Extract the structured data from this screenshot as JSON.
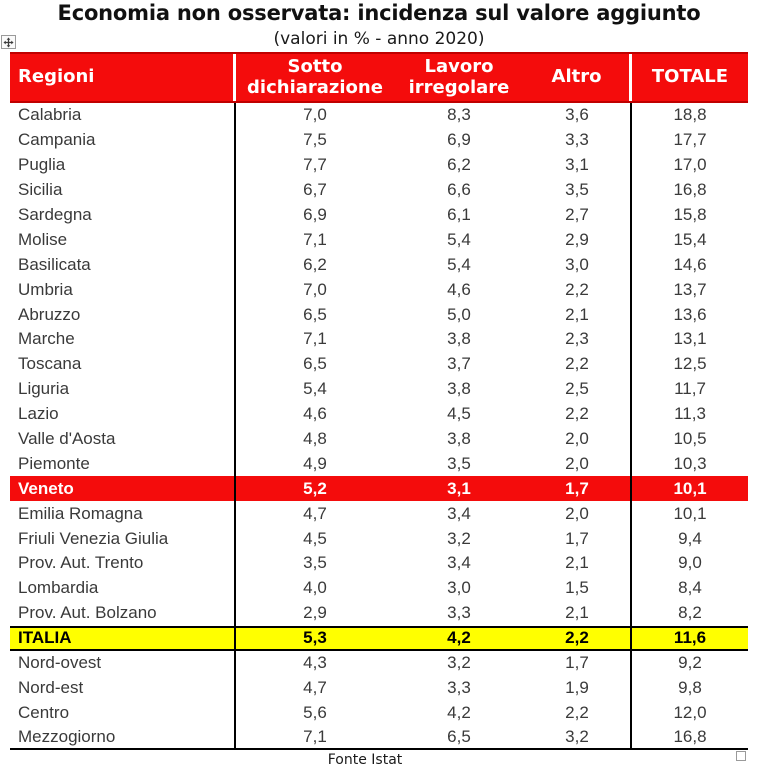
{
  "title": "Economia non osservata: incidenza sul valore aggiunto",
  "subtitle": "(valori in % - anno 2020)",
  "source": "Fonte Istat",
  "icons": {
    "top_left": "table-move-handle-icon",
    "bottom_right": "table-resize-handle-icon"
  },
  "colors": {
    "header_red": "#f40c0c",
    "header_edge_dark_red": "#c00000",
    "highlight_red_row": "#f40c0c",
    "highlight_yellow_row": "#ffff00",
    "header_text": "#ffffff",
    "body_text": "#3a3a3a",
    "border_black": "#000000"
  },
  "chart_data": {
    "type": "table",
    "title": "Economia non osservata: incidenza sul valore aggiunto",
    "subtitle": "(valori in % - anno 2020)",
    "columns": [
      "Regioni",
      "Sotto dichiarazione",
      "Lavoro irregolare",
      "Altro",
      "TOTALE"
    ],
    "rows": [
      {
        "region": "Calabria",
        "values": [
          "7,0",
          "8,3",
          "3,6",
          "18,8"
        ],
        "highlight": ""
      },
      {
        "region": "Campania",
        "values": [
          "7,5",
          "6,9",
          "3,3",
          "17,7"
        ],
        "highlight": ""
      },
      {
        "region": "Puglia",
        "values": [
          "7,7",
          "6,2",
          "3,1",
          "17,0"
        ],
        "highlight": ""
      },
      {
        "region": "Sicilia",
        "values": [
          "6,7",
          "6,6",
          "3,5",
          "16,8"
        ],
        "highlight": ""
      },
      {
        "region": "Sardegna",
        "values": [
          "6,9",
          "6,1",
          "2,7",
          "15,8"
        ],
        "highlight": ""
      },
      {
        "region": "Molise",
        "values": [
          "7,1",
          "5,4",
          "2,9",
          "15,4"
        ],
        "highlight": ""
      },
      {
        "region": "Basilicata",
        "values": [
          "6,2",
          "5,4",
          "3,0",
          "14,6"
        ],
        "highlight": ""
      },
      {
        "region": "Umbria",
        "values": [
          "7,0",
          "4,6",
          "2,2",
          "13,7"
        ],
        "highlight": ""
      },
      {
        "region": "Abruzzo",
        "values": [
          "6,5",
          "5,0",
          "2,1",
          "13,6"
        ],
        "highlight": ""
      },
      {
        "region": "Marche",
        "values": [
          "7,1",
          "3,8",
          "2,3",
          "13,1"
        ],
        "highlight": ""
      },
      {
        "region": "Toscana",
        "values": [
          "6,5",
          "3,7",
          "2,2",
          "12,5"
        ],
        "highlight": ""
      },
      {
        "region": "Liguria",
        "values": [
          "5,4",
          "3,8",
          "2,5",
          "11,7"
        ],
        "highlight": ""
      },
      {
        "region": "Lazio",
        "values": [
          "4,6",
          "4,5",
          "2,2",
          "11,3"
        ],
        "highlight": ""
      },
      {
        "region": "Valle d'Aosta",
        "values": [
          "4,8",
          "3,8",
          "2,0",
          "10,5"
        ],
        "highlight": ""
      },
      {
        "region": "Piemonte",
        "values": [
          "4,9",
          "3,5",
          "2,0",
          "10,3"
        ],
        "highlight": ""
      },
      {
        "region": "Veneto",
        "values": [
          "5,2",
          "3,1",
          "1,7",
          "10,1"
        ],
        "highlight": "red"
      },
      {
        "region": "Emilia Romagna",
        "values": [
          "4,7",
          "3,4",
          "2,0",
          "10,1"
        ],
        "highlight": ""
      },
      {
        "region": "Friuli Venezia Giulia",
        "values": [
          "4,5",
          "3,2",
          "1,7",
          "9,4"
        ],
        "highlight": ""
      },
      {
        "region": "Prov. Aut. Trento",
        "values": [
          "3,5",
          "3,4",
          "2,1",
          "9,0"
        ],
        "highlight": ""
      },
      {
        "region": "Lombardia",
        "values": [
          "4,0",
          "3,0",
          "1,5",
          "8,4"
        ],
        "highlight": ""
      },
      {
        "region": "Prov. Aut. Bolzano",
        "values": [
          "2,9",
          "3,3",
          "2,1",
          "8,2"
        ],
        "highlight": ""
      },
      {
        "region": "ITALIA",
        "values": [
          "5,3",
          "4,2",
          "2,2",
          "11,6"
        ],
        "highlight": "yellow"
      },
      {
        "region": "Nord-ovest",
        "values": [
          "4,3",
          "3,2",
          "1,7",
          "9,2"
        ],
        "highlight": ""
      },
      {
        "region": "Nord-est",
        "values": [
          "4,7",
          "3,3",
          "1,9",
          "9,8"
        ],
        "highlight": ""
      },
      {
        "region": "Centro",
        "values": [
          "5,6",
          "4,2",
          "2,2",
          "12,0"
        ],
        "highlight": ""
      },
      {
        "region": "Mezzogiorno",
        "values": [
          "7,1",
          "6,5",
          "3,2",
          "16,8"
        ],
        "highlight": ""
      }
    ]
  }
}
